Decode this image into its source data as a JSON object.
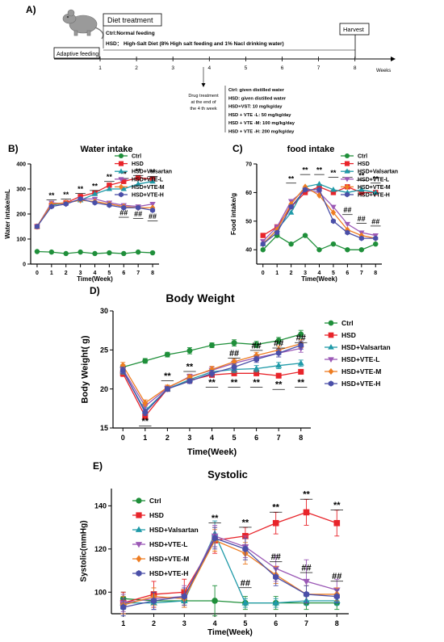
{
  "panel_a": {
    "label": "A)",
    "diet_title": "Diet treatment",
    "diet_ctrl": "Ctrl:Normal feeding",
    "diet_hsd": "HSD： High-Salt Diet (8% High salt feeding and 1% Nacl drinking water)",
    "adaptive": "Adaptive feeding",
    "harvest": "Harvest",
    "weeks_label": "Weeks",
    "week_ticks": [
      "1",
      "2",
      "3",
      "4",
      "5",
      "6",
      "7",
      "8"
    ],
    "drug_caption": [
      "Drug treatment",
      "at the end of",
      "the 4 th week"
    ],
    "drug_lines": [
      "Ctrl: given distilled water",
      "HSD: given distilled water",
      "HSD+VST: 10 mg/kg/day",
      "HSD + VTE -L: 50 mg/kg/day",
      "HSD + VTE -M: 100 mg/kg/day",
      "HSD + VTE -H: 200 mg/kg/day"
    ]
  },
  "colors": {
    "Ctrl": "#1f8f3a",
    "HSD": "#e8242a",
    "HSD+Valsartan": "#1f9aa8",
    "HSD+VTE-L": "#9b59b6",
    "HSD+VTE-M": "#ee7d22",
    "HSD+VTE-H": "#4a4fa8"
  },
  "markers": {
    "Ctrl": "circle",
    "HSD": "square",
    "HSD+Valsartan": "triangle-up",
    "HSD+VTE-L": "triangle-down",
    "HSD+VTE-M": "diamond",
    "HSD+VTE-H": "hexagon"
  },
  "chart_data": [
    {
      "panel": "B)",
      "type": "line",
      "title": "Water intake",
      "xlabel": "Time(Week)",
      "ylabel": "Water intake/mL",
      "x": [
        0,
        1,
        2,
        3,
        4,
        5,
        6,
        7,
        8
      ],
      "xticks": [
        "0",
        "1",
        "2",
        "3",
        "4",
        "5",
        "6",
        "7",
        "8"
      ],
      "ylim": [
        0,
        400
      ],
      "yticks": [
        0,
        100,
        200,
        300,
        400
      ],
      "legend": "top-right",
      "series": [
        {
          "name": "Ctrl",
          "values": [
            50,
            48,
            42,
            48,
            42,
            45,
            42,
            48,
            45
          ]
        },
        {
          "name": "HSD",
          "values": [
            150,
            235,
            245,
            270,
            285,
            315,
            330,
            345,
            340
          ]
        },
        {
          "name": "HSD+Valsartan",
          "values": [
            150,
            235,
            245,
            255,
            280,
            300,
            300,
            320,
            330
          ]
        },
        {
          "name": "HSD+VTE-L",
          "values": [
            150,
            245,
            240,
            260,
            260,
            245,
            235,
            230,
            240
          ]
        },
        {
          "name": "HSD+VTE-M",
          "values": [
            150,
            240,
            245,
            255,
            250,
            240,
            230,
            225,
            225
          ]
        },
        {
          "name": "HSD+VTE-H",
          "values": [
            150,
            230,
            240,
            260,
            245,
            235,
            225,
            225,
            215
          ]
        }
      ],
      "annotations": [
        {
          "text": "**",
          "x": 1,
          "y": 265
        },
        {
          "text": "**",
          "x": 2,
          "y": 268
        },
        {
          "text": "**",
          "x": 3,
          "y": 290
        },
        {
          "text": "**",
          "x": 4,
          "y": 302
        },
        {
          "text": "**",
          "x": 5,
          "y": 338
        },
        {
          "text": "**",
          "x": 6,
          "y": 350
        },
        {
          "text": "**",
          "x": 7,
          "y": 362
        },
        {
          "text": "**",
          "x": 8,
          "y": 358
        },
        {
          "text": "##",
          "x": 6,
          "y": 195
        },
        {
          "text": "##",
          "x": 7,
          "y": 190
        },
        {
          "text": "##",
          "x": 8,
          "y": 180
        }
      ]
    },
    {
      "panel": "C)",
      "type": "line",
      "title": "food intake",
      "xlabel": "Time(Week)",
      "ylabel": "Food intake/g",
      "x": [
        0,
        1,
        2,
        3,
        4,
        5,
        6,
        7,
        8
      ],
      "xticks": [
        "0",
        "1",
        "2",
        "3",
        "4",
        "5",
        "6",
        "7",
        "8"
      ],
      "ylim": [
        35,
        70
      ],
      "yticks": [
        40,
        50,
        60,
        70
      ],
      "legend": "top-right",
      "series": [
        {
          "name": "Ctrl",
          "values": [
            40,
            45,
            42,
            45,
            40,
            42,
            40,
            40,
            42
          ]
        },
        {
          "name": "HSD",
          "values": [
            45,
            48,
            55,
            60,
            62,
            60,
            62,
            60,
            60
          ]
        },
        {
          "name": "HSD+Valsartan",
          "values": [
            42,
            47,
            53,
            62,
            63,
            61,
            60,
            61,
            60
          ]
        },
        {
          "name": "HSD+VTE-L",
          "values": [
            43,
            48,
            57,
            61,
            60,
            55,
            49,
            46,
            45
          ]
        },
        {
          "name": "HSD+VTE-M",
          "values": [
            42,
            47,
            56,
            62,
            59,
            53,
            47,
            45,
            44
          ]
        },
        {
          "name": "HSD+VTE-H",
          "values": [
            42,
            46,
            55,
            61,
            61,
            50,
            46,
            44,
            44
          ]
        }
      ],
      "annotations": [
        {
          "text": "**",
          "x": 2,
          "y": 64
        },
        {
          "text": "**",
          "x": 3,
          "y": 67
        },
        {
          "text": "**",
          "x": 4,
          "y": 67
        },
        {
          "text": "**",
          "x": 5,
          "y": 66
        },
        {
          "text": "**",
          "x": 6,
          "y": 66
        },
        {
          "text": "**",
          "x": 7,
          "y": 65
        },
        {
          "text": "**",
          "x": 8,
          "y": 64
        },
        {
          "text": "##",
          "x": 6,
          "y": 53
        },
        {
          "text": "##",
          "x": 7,
          "y": 50
        },
        {
          "text": "##",
          "x": 8,
          "y": 49
        }
      ]
    },
    {
      "panel": "D)",
      "type": "line",
      "title": "Body Weight",
      "xlabel": "Time(Week)",
      "ylabel": "Body Weight( g)",
      "x": [
        0,
        1,
        2,
        3,
        4,
        5,
        6,
        7,
        8
      ],
      "xticks": [
        "0",
        "1",
        "2",
        "3",
        "4",
        "5",
        "6",
        "7",
        "8"
      ],
      "ylim": [
        15,
        30
      ],
      "yticks": [
        15,
        20,
        25,
        30
      ],
      "legend": "right",
      "series": [
        {
          "name": "Ctrl",
          "values": [
            22.8,
            23.6,
            24.4,
            24.9,
            25.6,
            25.9,
            25.7,
            26.2,
            27.0
          ],
          "err": [
            0.3,
            0.3,
            0.3,
            0.4,
            0.3,
            0.4,
            0.4,
            0.4,
            0.5
          ]
        },
        {
          "name": "HSD",
          "values": [
            22.0,
            16.5,
            20.0,
            21.1,
            21.8,
            22.0,
            22.0,
            21.7,
            22.2
          ],
          "err": [
            0.4,
            0.3,
            0.3,
            0.3,
            0.3,
            0.3,
            0.3,
            0.3,
            0.3
          ]
        },
        {
          "name": "HSD+Valsartan",
          "values": [
            22.3,
            17.2,
            20.0,
            21.2,
            22.2,
            22.5,
            22.6,
            23.0,
            23.3
          ],
          "err": [
            0.4,
            0.4,
            0.3,
            0.3,
            0.4,
            0.4,
            0.4,
            0.4,
            0.4
          ]
        },
        {
          "name": "HSD+VTE-L",
          "values": [
            22.5,
            17.8,
            20.1,
            21.6,
            22.4,
            23.3,
            24.0,
            24.6,
            25.2
          ],
          "err": [
            0.4,
            0.4,
            0.3,
            0.3,
            0.4,
            0.4,
            0.4,
            0.5,
            0.5
          ]
        },
        {
          "name": "HSD+VTE-M",
          "values": [
            23.0,
            18.2,
            20.2,
            21.5,
            22.5,
            23.5,
            24.3,
            25.0,
            25.8
          ],
          "err": [
            0.4,
            0.4,
            0.3,
            0.3,
            0.4,
            0.4,
            0.4,
            0.5,
            0.5
          ]
        },
        {
          "name": "HSD+VTE-H",
          "values": [
            22.4,
            17.0,
            20.0,
            21.0,
            22.0,
            22.8,
            23.8,
            24.6,
            25.6
          ],
          "err": [
            0.4,
            0.4,
            0.3,
            0.3,
            0.4,
            0.4,
            0.4,
            0.5,
            0.5
          ]
        }
      ],
      "annotations": [
        {
          "text": "**",
          "x": 1,
          "y": 15.5
        },
        {
          "text": "**",
          "x": 2,
          "y": 21.3
        },
        {
          "text": "**",
          "x": 3,
          "y": 22.5
        },
        {
          "text": "**",
          "x": 4,
          "y": 20.5
        },
        {
          "text": "**",
          "x": 5,
          "y": 20.5
        },
        {
          "text": "**",
          "x": 6,
          "y": 20.5
        },
        {
          "text": "**",
          "x": 7,
          "y": 20.2
        },
        {
          "text": "**",
          "x": 8,
          "y": 20.5
        },
        {
          "text": "##",
          "x": 5,
          "y": 24.2
        },
        {
          "text": "##",
          "x": 6,
          "y": 25.2
        },
        {
          "text": "##",
          "x": 7,
          "y": 25.5
        },
        {
          "text": "##",
          "x": 8,
          "y": 26.2
        }
      ]
    },
    {
      "panel": "E)",
      "type": "line",
      "title": "Systolic",
      "xlabel": "Time(Week)",
      "ylabel": "Systolic(mmHg)",
      "x": [
        1,
        2,
        3,
        4,
        5,
        6,
        7,
        8
      ],
      "xticks": [
        "1",
        "2",
        "3",
        "4",
        "5",
        "6",
        "7",
        "8"
      ],
      "ylim": [
        90,
        148
      ],
      "yticks": [
        100,
        120,
        140
      ],
      "legend": "top-left",
      "series": [
        {
          "name": "Ctrl",
          "values": [
            97,
            96,
            96,
            96,
            95,
            95,
            95,
            95
          ],
          "err": [
            3,
            3,
            3,
            7,
            3,
            3,
            3,
            3
          ]
        },
        {
          "name": "HSD",
          "values": [
            95,
            99,
            100,
            124,
            126,
            132,
            137,
            132
          ],
          "err": [
            5,
            6,
            6,
            6,
            4,
            5,
            6,
            6
          ]
        },
        {
          "name": "HSD+Valsartan",
          "values": [
            95,
            95,
            96,
            127,
            95,
            95,
            96,
            96
          ],
          "err": [
            3,
            3,
            3,
            6,
            2,
            2,
            2,
            2
          ]
        },
        {
          "name": "HSD+VTE-L",
          "values": [
            95,
            97,
            98,
            126,
            121,
            111,
            105,
            101
          ],
          "err": [
            4,
            5,
            5,
            5,
            5,
            6,
            10,
            5
          ]
        },
        {
          "name": "HSD+VTE-M",
          "values": [
            94,
            98,
            97,
            124,
            118,
            108,
            99,
            99
          ],
          "err": [
            4,
            4,
            4,
            5,
            5,
            4,
            4,
            3
          ]
        },
        {
          "name": "HSD+VTE-H",
          "values": [
            93,
            96,
            98,
            125,
            120,
            107,
            99,
            98
          ],
          "err": [
            4,
            4,
            4,
            5,
            5,
            4,
            4,
            3
          ]
        }
      ],
      "annotations": [
        {
          "text": "**",
          "x": 4,
          "y": 133
        },
        {
          "text": "**",
          "x": 5,
          "y": 131
        },
        {
          "text": "**",
          "x": 6,
          "y": 138
        },
        {
          "text": "**",
          "x": 7,
          "y": 144
        },
        {
          "text": "**",
          "x": 8,
          "y": 139
        },
        {
          "text": "##",
          "x": 5,
          "y": 103
        },
        {
          "text": "##",
          "x": 6,
          "y": 115
        },
        {
          "text": "##",
          "x": 7,
          "y": 110
        },
        {
          "text": "##",
          "x": 8,
          "y": 106
        }
      ]
    }
  ]
}
